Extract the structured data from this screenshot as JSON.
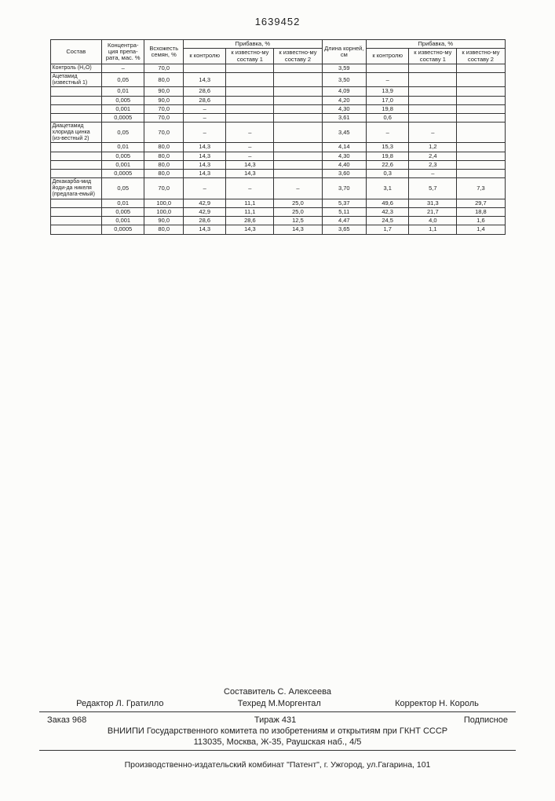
{
  "page_number": "1639452",
  "table": {
    "headers": {
      "h1": "Состав",
      "h2": "Концентра-ция препа-рата, мас. %",
      "h3": "Всхожесть семян, %",
      "h4_group": "Прибавка, %",
      "h4a": "к контролю",
      "h4b": "к известно-му составу 1",
      "h4c": "к известно-му составу 2",
      "h5": "Длина корней, см",
      "h6_group": "Прибавка, %",
      "h6a": "к контролю",
      "h6b": "к известно-му составу 1",
      "h6c": "к известно-му составу 2"
    },
    "rows": [
      {
        "label": "Контроль (H₂O)",
        "c2": "–",
        "c3": "70,0",
        "c4": "",
        "c5": "",
        "c6": "",
        "c7": "3,59",
        "c8": "",
        "c9": "",
        "c10": ""
      },
      {
        "label": "Ацетамид (известный 1)",
        "c2": "0,05",
        "c3": "80,0",
        "c4": "14,3",
        "c5": "",
        "c6": "",
        "c7": "3,50",
        "c8": "–",
        "c9": "",
        "c10": ""
      },
      {
        "label": "",
        "c2": "0,01",
        "c3": "90,0",
        "c4": "28,6",
        "c5": "",
        "c6": "",
        "c7": "4,09",
        "c8": "13,9",
        "c9": "",
        "c10": ""
      },
      {
        "label": "",
        "c2": "0,005",
        "c3": "90,0",
        "c4": "28,6",
        "c5": "",
        "c6": "",
        "c7": "4,20",
        "c8": "17,0",
        "c9": "",
        "c10": ""
      },
      {
        "label": "",
        "c2": "0,001",
        "c3": "70,0",
        "c4": "–",
        "c5": "",
        "c6": "",
        "c7": "4,30",
        "c8": "19,8",
        "c9": "",
        "c10": ""
      },
      {
        "label": "",
        "c2": "0,0005",
        "c3": "70,0",
        "c4": "–",
        "c5": "",
        "c6": "",
        "c7": "3,61",
        "c8": "0,6",
        "c9": "",
        "c10": ""
      },
      {
        "label": "Диацетамид хлорида цинка (из-вестный 2)",
        "c2": "0,05",
        "c3": "70,0",
        "c4": "–",
        "c5": "–",
        "c6": "",
        "c7": "3,45",
        "c8": "–",
        "c9": "–",
        "c10": ""
      },
      {
        "label": "",
        "c2": "0,01",
        "c3": "80,0",
        "c4": "14,3",
        "c5": "–",
        "c6": "",
        "c7": "4,14",
        "c8": "15,3",
        "c9": "1,2",
        "c10": ""
      },
      {
        "label": "",
        "c2": "0,005",
        "c3": "80,0",
        "c4": "14,3",
        "c5": "–",
        "c6": "",
        "c7": "4,30",
        "c8": "19,8",
        "c9": "2,4",
        "c10": ""
      },
      {
        "label": "",
        "c2": "0,001",
        "c3": "80,0",
        "c4": "14,3",
        "c5": "14,3",
        "c6": "",
        "c7": "4,40",
        "c8": "22,6",
        "c9": "2,3",
        "c10": ""
      },
      {
        "label": "",
        "c2": "0,0005",
        "c3": "80,0",
        "c4": "14,3",
        "c5": "14,3",
        "c6": "",
        "c7": "3,60",
        "c8": "0,3",
        "c9": "–",
        "c10": ""
      },
      {
        "label": "Декакарба-мид йоди-да никеля (предлага-емый)",
        "c2": "0,05",
        "c3": "70,0",
        "c4": "–",
        "c5": "–",
        "c6": "–",
        "c7": "3,70",
        "c8": "3,1",
        "c9": "5,7",
        "c10": "7,3"
      },
      {
        "label": "",
        "c2": "0,01",
        "c3": "100,0",
        "c4": "42,9",
        "c5": "11,1",
        "c6": "25,0",
        "c7": "5,37",
        "c8": "49,6",
        "c9": "31,3",
        "c10": "29,7"
      },
      {
        "label": "",
        "c2": "0,005",
        "c3": "100,0",
        "c4": "42,9",
        "c5": "11,1",
        "c6": "25,0",
        "c7": "5,11",
        "c8": "42,3",
        "c9": "21,7",
        "c10": "18,8"
      },
      {
        "label": "",
        "c2": "0,001",
        "c3": "90,0",
        "c4": "28,6",
        "c5": "28,6",
        "c6": "12,5",
        "c7": "4,47",
        "c8": "24,5",
        "c9": "4,0",
        "c10": "1,6"
      },
      {
        "label": "",
        "c2": "0,0005",
        "c3": "80,0",
        "c4": "14,3",
        "c5": "14,3",
        "c6": "14,3",
        "c7": "3,65",
        "c8": "1,7",
        "c9": "1,1",
        "c10": "1,4"
      }
    ]
  },
  "footer": {
    "editor_label": "Редактор",
    "editor": "Л. Гратилло",
    "compiler_label": "Составитель",
    "compiler": "С. Алексеева",
    "techred_label": "Техред",
    "techred": "М.Моргентал",
    "corrector_label": "Корректор",
    "corrector": "Н. Король",
    "order": "Заказ 968",
    "tirage": "Тираж 431",
    "subscription": "Подписное",
    "org": "ВНИИПИ Государственного комитета по изобретениям и открытиям при ГКНТ СССР",
    "address": "113035, Москва, Ж-35, Раушская наб., 4/5",
    "publisher": "Производственно-издательский комбинат \"Патент\", г. Ужгород, ул.Гагарина, 101"
  }
}
